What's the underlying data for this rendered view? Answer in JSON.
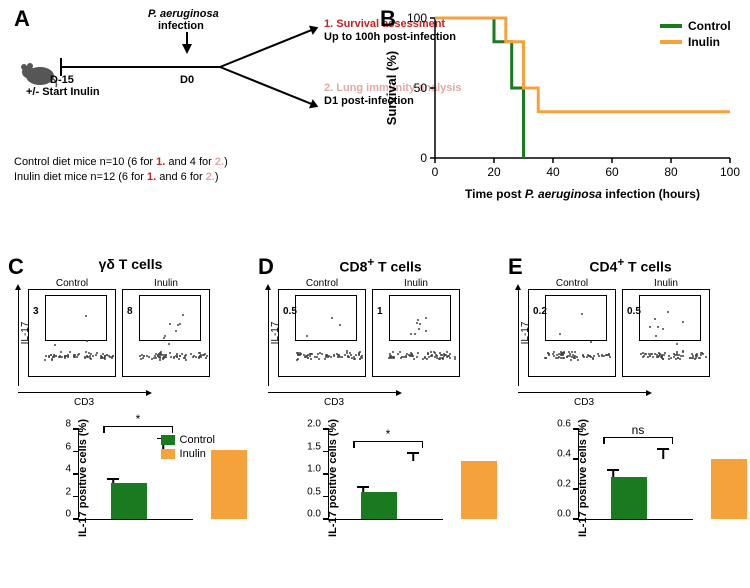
{
  "colors": {
    "control": "#1a7a1f",
    "inulin": "#f5a23c",
    "black": "#000000",
    "red_num1": "#c22424",
    "red_num2": "#e3a9a4",
    "bg": "#ffffff"
  },
  "panelLabels": {
    "A": "A",
    "B": "B",
    "C": "C",
    "D": "D",
    "E": "E"
  },
  "panelA": {
    "infection_line1": "P. aeruginosa",
    "infection_line2": "infection",
    "d15": "D-15",
    "d15_sub": "+/- Start Inulin",
    "d0": "D0",
    "branch1_num": "1.",
    "branch1_title": "Survival assessment",
    "branch1_sub": "Up to 100h post-infection",
    "branch2_num": "2.",
    "branch2_title": "Lung immunity analysis",
    "branch2_sub": "D1 post-infection",
    "caption_l1_a": "Control diet mice n=10 (6 for ",
    "caption_l1_b": " and 4 for ",
    "caption_l1_c": ")",
    "caption_l2_a": "Inulin diet mice n=12 (6 for ",
    "caption_l2_b": " and 6 for ",
    "caption_l2_c": ")"
  },
  "panelB": {
    "type": "survival-step",
    "ylabel": "Survival (%)",
    "xlabel_line1": "Time post ",
    "xlabel_italic": "P. aeruginosa",
    "xlabel_line2": " infection (hours)",
    "xlim": [
      0,
      100
    ],
    "ylim": [
      0,
      100
    ],
    "xticks": [
      0,
      20,
      40,
      60,
      80,
      100
    ],
    "yticks": [
      0,
      50,
      100
    ],
    "legend": {
      "control": "Control",
      "inulin": "Inulin"
    },
    "line_width": 3,
    "series": {
      "control": [
        [
          0,
          100
        ],
        [
          20,
          100
        ],
        [
          20,
          83
        ],
        [
          26,
          83
        ],
        [
          26,
          50
        ],
        [
          30,
          50
        ],
        [
          30,
          0
        ]
      ],
      "inulin": [
        [
          0,
          100
        ],
        [
          24,
          100
        ],
        [
          24,
          83
        ],
        [
          30,
          83
        ],
        [
          30,
          50
        ],
        [
          35,
          50
        ],
        [
          35,
          33
        ],
        [
          100,
          33
        ]
      ]
    }
  },
  "facsAxes": {
    "y": "IL-17",
    "x": "CD3"
  },
  "legendBars": {
    "control": "Control",
    "inulin": "Inulin"
  },
  "panels": {
    "C": {
      "title": "γδ T cells",
      "facs": {
        "control_value": "3",
        "inulin_value": "8"
      },
      "bar": {
        "ylabel": "IL-17 positive cells (%)",
        "ymax": 8,
        "ytick_step": 2,
        "control": {
          "mean": 3.2,
          "err": 0.4
        },
        "inulin": {
          "mean": 6.1,
          "err": 1.1
        },
        "sig": "*"
      }
    },
    "D": {
      "title": "CD8⁺ T cells",
      "facs": {
        "control_value": "0.5",
        "inulin_value": "1"
      },
      "bar": {
        "ylabel": "IL-17 positive cells (%)",
        "ymax": 2.0,
        "ytick_step": 0.5,
        "control": {
          "mean": 0.6,
          "err": 0.12
        },
        "inulin": {
          "mean": 1.3,
          "err": 0.17
        },
        "sig": "*"
      }
    },
    "E": {
      "title": "CD4⁺ T cells",
      "facs": {
        "control_value": "0.2",
        "inulin_value": "0.5"
      },
      "bar": {
        "ylabel": "IL-17 positive cells (%)",
        "ymax": 0.6,
        "ytick_step": 0.2,
        "control": {
          "mean": 0.28,
          "err": 0.05
        },
        "inulin": {
          "mean": 0.4,
          "err": 0.07
        },
        "sig": "ns"
      }
    }
  }
}
